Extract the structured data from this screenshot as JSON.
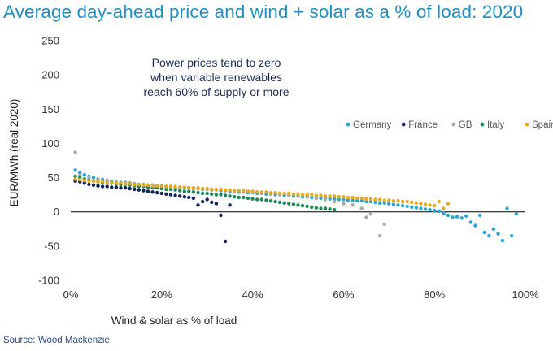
{
  "title": "Average day-ahead price and wind + solar as a % of load: 2020",
  "source": "Source: Wood Mackenzie",
  "chart_data": {
    "type": "scatter",
    "title": "Average day-ahead price and wind + solar as a % of load: 2020",
    "xlabel": "Wind & solar as % of load",
    "ylabel": "EUR/MWh (real 2020)",
    "xlim": [
      0,
      100
    ],
    "ylim": [
      -100,
      250
    ],
    "x_ticks": [
      "0%",
      "20%",
      "40%",
      "60%",
      "80%",
      "100%"
    ],
    "y_ticks": [
      "-100",
      "-50",
      "0",
      "50",
      "100",
      "150",
      "200",
      "250"
    ],
    "legend_position": "right",
    "annotation": [
      "Power prices tend to zero",
      "when variable renewables",
      "reach 60% of supply or more"
    ],
    "series": [
      {
        "name": "Germany",
        "color": "#25a5d9",
        "points": [
          [
            1,
            61
          ],
          [
            2,
            57
          ],
          [
            3,
            54
          ],
          [
            4,
            52
          ],
          [
            5,
            50
          ],
          [
            6,
            48
          ],
          [
            7,
            47
          ],
          [
            8,
            46
          ],
          [
            9,
            45
          ],
          [
            10,
            44
          ],
          [
            11,
            43
          ],
          [
            12,
            43
          ],
          [
            13,
            42
          ],
          [
            14,
            41
          ],
          [
            15,
            40
          ],
          [
            16,
            40
          ],
          [
            17,
            39
          ],
          [
            18,
            39
          ],
          [
            19,
            38
          ],
          [
            20,
            38
          ],
          [
            21,
            37
          ],
          [
            22,
            37
          ],
          [
            23,
            36
          ],
          [
            24,
            36
          ],
          [
            25,
            35
          ],
          [
            26,
            35
          ],
          [
            27,
            34
          ],
          [
            28,
            34
          ],
          [
            29,
            33
          ],
          [
            30,
            33
          ],
          [
            31,
            32
          ],
          [
            32,
            32
          ],
          [
            33,
            31
          ],
          [
            34,
            31
          ],
          [
            35,
            30
          ],
          [
            36,
            30
          ],
          [
            37,
            29
          ],
          [
            38,
            29
          ],
          [
            39,
            28
          ],
          [
            40,
            28
          ],
          [
            41,
            27
          ],
          [
            42,
            27
          ],
          [
            43,
            26
          ],
          [
            44,
            26
          ],
          [
            45,
            25
          ],
          [
            46,
            25
          ],
          [
            47,
            24
          ],
          [
            48,
            24
          ],
          [
            49,
            23
          ],
          [
            50,
            23
          ],
          [
            51,
            22
          ],
          [
            52,
            22
          ],
          [
            53,
            21
          ],
          [
            54,
            21
          ],
          [
            55,
            20
          ],
          [
            56,
            20
          ],
          [
            57,
            19
          ],
          [
            58,
            19
          ],
          [
            59,
            18
          ],
          [
            60,
            18
          ],
          [
            61,
            17
          ],
          [
            62,
            17
          ],
          [
            63,
            16
          ],
          [
            64,
            16
          ],
          [
            65,
            15
          ],
          [
            66,
            15
          ],
          [
            67,
            14
          ],
          [
            68,
            13
          ],
          [
            69,
            13
          ],
          [
            70,
            12
          ],
          [
            71,
            11
          ],
          [
            72,
            10
          ],
          [
            73,
            9
          ],
          [
            74,
            8
          ],
          [
            75,
            7
          ],
          [
            76,
            6
          ],
          [
            77,
            5
          ],
          [
            78,
            4
          ],
          [
            79,
            3
          ],
          [
            80,
            2
          ],
          [
            81,
            1
          ],
          [
            82,
            -2
          ],
          [
            83,
            -5
          ],
          [
            84,
            -8
          ],
          [
            85,
            -7
          ],
          [
            86,
            -9
          ],
          [
            87,
            -6
          ],
          [
            88,
            -15
          ],
          [
            89,
            -20
          ],
          [
            90,
            -5
          ],
          [
            91,
            -30
          ],
          [
            92,
            -35
          ],
          [
            93,
            -25
          ],
          [
            94,
            -32
          ],
          [
            95,
            -42
          ],
          [
            96,
            5
          ],
          [
            97,
            -35
          ],
          [
            98,
            -3
          ]
        ]
      },
      {
        "name": "France",
        "color": "#14235a",
        "points": [
          [
            1,
            45
          ],
          [
            2,
            44
          ],
          [
            3,
            42
          ],
          [
            4,
            40
          ],
          [
            5,
            39
          ],
          [
            6,
            38
          ],
          [
            7,
            37
          ],
          [
            8,
            37
          ],
          [
            9,
            36
          ],
          [
            10,
            36
          ],
          [
            11,
            35
          ],
          [
            12,
            35
          ],
          [
            13,
            34
          ],
          [
            14,
            33
          ],
          [
            15,
            32
          ],
          [
            16,
            31
          ],
          [
            17,
            30
          ],
          [
            18,
            29
          ],
          [
            19,
            28
          ],
          [
            20,
            27
          ],
          [
            21,
            26
          ],
          [
            22,
            25
          ],
          [
            23,
            24
          ],
          [
            24,
            23
          ],
          [
            25,
            22
          ],
          [
            26,
            21
          ],
          [
            27,
            20
          ],
          [
            28,
            10
          ],
          [
            29,
            15
          ],
          [
            30,
            18
          ],
          [
            31,
            14
          ],
          [
            32,
            12
          ],
          [
            33,
            -5
          ],
          [
            34,
            -43
          ],
          [
            35,
            10
          ]
        ]
      },
      {
        "name": "GB",
        "color": "#a8a8a8",
        "points": [
          [
            1,
            87
          ],
          [
            2,
            53
          ],
          [
            4,
            50
          ],
          [
            6,
            48
          ],
          [
            8,
            46
          ],
          [
            10,
            44
          ],
          [
            12,
            42
          ],
          [
            14,
            41
          ],
          [
            16,
            40
          ],
          [
            18,
            39
          ],
          [
            20,
            38
          ],
          [
            22,
            37
          ],
          [
            24,
            36
          ],
          [
            26,
            35
          ],
          [
            28,
            34
          ],
          [
            30,
            33
          ],
          [
            32,
            32
          ],
          [
            34,
            31
          ],
          [
            36,
            30
          ],
          [
            38,
            29
          ],
          [
            40,
            28
          ],
          [
            42,
            27
          ],
          [
            44,
            26
          ],
          [
            46,
            25
          ],
          [
            48,
            24
          ],
          [
            50,
            23
          ],
          [
            52,
            22
          ],
          [
            54,
            20
          ],
          [
            56,
            18
          ],
          [
            58,
            15
          ],
          [
            60,
            12
          ],
          [
            62,
            10
          ],
          [
            64,
            5
          ],
          [
            65,
            -8
          ],
          [
            66,
            -3
          ],
          [
            68,
            -35
          ],
          [
            69,
            -18
          ]
        ]
      },
      {
        "name": "Italy",
        "color": "#1e8a5a",
        "points": [
          [
            1,
            52
          ],
          [
            2,
            50
          ],
          [
            3,
            48
          ],
          [
            4,
            46
          ],
          [
            5,
            45
          ],
          [
            6,
            44
          ],
          [
            7,
            43
          ],
          [
            8,
            43
          ],
          [
            9,
            42
          ],
          [
            10,
            41
          ],
          [
            11,
            40
          ],
          [
            12,
            40
          ],
          [
            13,
            39
          ],
          [
            14,
            38
          ],
          [
            15,
            37
          ],
          [
            16,
            37
          ],
          [
            17,
            36
          ],
          [
            18,
            35
          ],
          [
            19,
            35
          ],
          [
            20,
            34
          ],
          [
            21,
            33
          ],
          [
            22,
            33
          ],
          [
            23,
            32
          ],
          [
            24,
            31
          ],
          [
            25,
            30
          ],
          [
            26,
            30
          ],
          [
            27,
            29
          ],
          [
            28,
            28
          ],
          [
            29,
            27
          ],
          [
            30,
            27
          ],
          [
            31,
            26
          ],
          [
            32,
            25
          ],
          [
            33,
            25
          ],
          [
            34,
            24
          ],
          [
            35,
            23
          ],
          [
            36,
            22
          ],
          [
            37,
            21
          ],
          [
            38,
            21
          ],
          [
            39,
            20
          ],
          [
            40,
            19
          ],
          [
            41,
            18
          ],
          [
            42,
            18
          ],
          [
            43,
            17
          ],
          [
            44,
            16
          ],
          [
            45,
            15
          ],
          [
            46,
            14
          ],
          [
            47,
            13
          ],
          [
            48,
            12
          ],
          [
            49,
            11
          ],
          [
            50,
            10
          ],
          [
            51,
            9
          ],
          [
            52,
            8
          ],
          [
            53,
            7
          ],
          [
            54,
            6
          ],
          [
            55,
            5
          ],
          [
            56,
            5
          ],
          [
            57,
            4
          ],
          [
            58,
            3
          ]
        ]
      },
      {
        "name": "Spain",
        "color": "#e8a91a",
        "points": [
          [
            1,
            48
          ],
          [
            2,
            47
          ],
          [
            3,
            46
          ],
          [
            4,
            45
          ],
          [
            5,
            45
          ],
          [
            6,
            44
          ],
          [
            7,
            44
          ],
          [
            8,
            43
          ],
          [
            9,
            43
          ],
          [
            10,
            42
          ],
          [
            11,
            42
          ],
          [
            12,
            41
          ],
          [
            13,
            41
          ],
          [
            14,
            40
          ],
          [
            15,
            40
          ],
          [
            16,
            39
          ],
          [
            17,
            39
          ],
          [
            18,
            38
          ],
          [
            19,
            38
          ],
          [
            20,
            38
          ],
          [
            21,
            37
          ],
          [
            22,
            37
          ],
          [
            23,
            37
          ],
          [
            24,
            36
          ],
          [
            25,
            36
          ],
          [
            26,
            35
          ],
          [
            27,
            35
          ],
          [
            28,
            35
          ],
          [
            29,
            34
          ],
          [
            30,
            34
          ],
          [
            31,
            33
          ],
          [
            32,
            33
          ],
          [
            33,
            33
          ],
          [
            34,
            32
          ],
          [
            35,
            32
          ],
          [
            36,
            31
          ],
          [
            37,
            31
          ],
          [
            38,
            31
          ],
          [
            39,
            30
          ],
          [
            40,
            30
          ],
          [
            41,
            29
          ],
          [
            42,
            29
          ],
          [
            43,
            29
          ],
          [
            44,
            28
          ],
          [
            45,
            28
          ],
          [
            46,
            27
          ],
          [
            47,
            27
          ],
          [
            48,
            27
          ],
          [
            49,
            26
          ],
          [
            50,
            26
          ],
          [
            51,
            25
          ],
          [
            52,
            25
          ],
          [
            53,
            25
          ],
          [
            54,
            24
          ],
          [
            55,
            24
          ],
          [
            56,
            23
          ],
          [
            57,
            23
          ],
          [
            58,
            23
          ],
          [
            59,
            22
          ],
          [
            60,
            22
          ],
          [
            61,
            21
          ],
          [
            62,
            21
          ],
          [
            63,
            20
          ],
          [
            64,
            20
          ],
          [
            65,
            19
          ],
          [
            66,
            19
          ],
          [
            67,
            18
          ],
          [
            68,
            18
          ],
          [
            69,
            17
          ],
          [
            70,
            17
          ],
          [
            71,
            16
          ],
          [
            72,
            16
          ],
          [
            73,
            15
          ],
          [
            74,
            15
          ],
          [
            75,
            14
          ],
          [
            76,
            13
          ],
          [
            77,
            12
          ],
          [
            78,
            11
          ],
          [
            79,
            10
          ],
          [
            80,
            9
          ],
          [
            81,
            15
          ],
          [
            82,
            5
          ],
          [
            83,
            12
          ]
        ]
      }
    ]
  }
}
